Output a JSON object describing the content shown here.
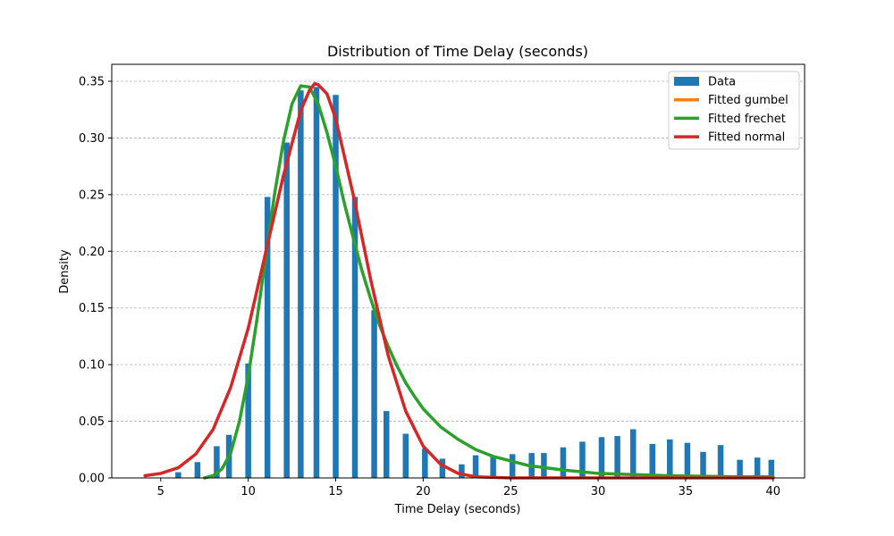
{
  "chart_data": {
    "type": "bar",
    "title": "Distribution of Time Delay (seconds)",
    "xlabel": "Time Delay (seconds)",
    "ylabel": "Density",
    "xlim": [
      2.2,
      41.8
    ],
    "ylim": [
      0,
      0.365
    ],
    "xticks": [
      5,
      10,
      15,
      20,
      25,
      30,
      35,
      40
    ],
    "yticks": [
      0.0,
      0.05,
      0.1,
      0.15,
      0.2,
      0.25,
      0.3,
      0.35
    ],
    "ytick_labels": [
      "0.00",
      "0.05",
      "0.10",
      "0.15",
      "0.20",
      "0.25",
      "0.30",
      "0.35"
    ],
    "grid": "y-dashed",
    "legend_position": "top-right",
    "histogram": {
      "name": "Data",
      "color": "#1f77b4",
      "bins": [
        {
          "x": 6.0,
          "density": 0.005
        },
        {
          "x": 7.1,
          "density": 0.014
        },
        {
          "x": 8.2,
          "density": 0.028
        },
        {
          "x": 8.9,
          "density": 0.038
        },
        {
          "x": 10.0,
          "density": 0.101
        },
        {
          "x": 11.1,
          "density": 0.248
        },
        {
          "x": 12.2,
          "density": 0.296
        },
        {
          "x": 13.0,
          "density": 0.342
        },
        {
          "x": 13.9,
          "density": 0.345
        },
        {
          "x": 15.0,
          "density": 0.338
        },
        {
          "x": 16.1,
          "density": 0.248
        },
        {
          "x": 17.2,
          "density": 0.148
        },
        {
          "x": 17.9,
          "density": 0.059
        },
        {
          "x": 19.0,
          "density": 0.039
        },
        {
          "x": 20.1,
          "density": 0.026
        },
        {
          "x": 21.1,
          "density": 0.017
        },
        {
          "x": 22.2,
          "density": 0.012
        },
        {
          "x": 23.0,
          "density": 0.02
        },
        {
          "x": 24.0,
          "density": 0.019
        },
        {
          "x": 25.1,
          "density": 0.021
        },
        {
          "x": 26.2,
          "density": 0.022
        },
        {
          "x": 26.9,
          "density": 0.022
        },
        {
          "x": 28.0,
          "density": 0.027
        },
        {
          "x": 29.1,
          "density": 0.032
        },
        {
          "x": 30.2,
          "density": 0.036
        },
        {
          "x": 31.1,
          "density": 0.037
        },
        {
          "x": 32.0,
          "density": 0.043
        },
        {
          "x": 33.1,
          "density": 0.03
        },
        {
          "x": 34.1,
          "density": 0.034
        },
        {
          "x": 35.1,
          "density": 0.031
        },
        {
          "x": 36.0,
          "density": 0.023
        },
        {
          "x": 37.0,
          "density": 0.029
        },
        {
          "x": 38.1,
          "density": 0.016
        },
        {
          "x": 39.1,
          "density": 0.018
        },
        {
          "x": 39.9,
          "density": 0.016
        }
      ]
    },
    "series": [
      {
        "name": "Fitted gumbel",
        "color": "#ff7f0e",
        "points": []
      },
      {
        "name": "Fitted frechet",
        "color": "#2ca02c",
        "points": [
          [
            7.5,
            0.0
          ],
          [
            8.0,
            0.002
          ],
          [
            8.5,
            0.008
          ],
          [
            9.0,
            0.022
          ],
          [
            9.5,
            0.05
          ],
          [
            10.0,
            0.09
          ],
          [
            10.5,
            0.14
          ],
          [
            11.0,
            0.195
          ],
          [
            11.5,
            0.25
          ],
          [
            12.0,
            0.296
          ],
          [
            12.5,
            0.33
          ],
          [
            13.0,
            0.346
          ],
          [
            13.5,
            0.345
          ],
          [
            14.0,
            0.33
          ],
          [
            14.5,
            0.305
          ],
          [
            15.0,
            0.275
          ],
          [
            15.5,
            0.242
          ],
          [
            16.0,
            0.212
          ],
          [
            16.5,
            0.183
          ],
          [
            17.0,
            0.158
          ],
          [
            17.5,
            0.135
          ],
          [
            18.0,
            0.116
          ],
          [
            18.5,
            0.099
          ],
          [
            19.0,
            0.084
          ],
          [
            19.5,
            0.072
          ],
          [
            20.0,
            0.061
          ],
          [
            21.0,
            0.045
          ],
          [
            22.0,
            0.034
          ],
          [
            23.0,
            0.025
          ],
          [
            24.0,
            0.019
          ],
          [
            25.0,
            0.015
          ],
          [
            26.0,
            0.011
          ],
          [
            27.0,
            0.009
          ],
          [
            28.0,
            0.007
          ],
          [
            30.0,
            0.004
          ],
          [
            32.0,
            0.003
          ],
          [
            34.0,
            0.002
          ],
          [
            36.0,
            0.0015
          ],
          [
            38.0,
            0.001
          ],
          [
            40.0,
            0.001
          ]
        ]
      },
      {
        "name": "Fitted normal",
        "color": "#d62728",
        "points": [
          [
            4.1,
            0.002
          ],
          [
            5.0,
            0.004
          ],
          [
            6.0,
            0.009
          ],
          [
            7.0,
            0.021
          ],
          [
            8.0,
            0.043
          ],
          [
            9.0,
            0.08
          ],
          [
            10.0,
            0.132
          ],
          [
            11.0,
            0.199
          ],
          [
            12.0,
            0.266
          ],
          [
            13.0,
            0.324
          ],
          [
            13.5,
            0.342
          ],
          [
            13.8,
            0.348
          ],
          [
            14.0,
            0.347
          ],
          [
            14.5,
            0.339
          ],
          [
            15.0,
            0.317
          ],
          [
            16.0,
            0.25
          ],
          [
            17.0,
            0.175
          ],
          [
            18.0,
            0.108
          ],
          [
            19.0,
            0.059
          ],
          [
            20.0,
            0.028
          ],
          [
            21.0,
            0.012
          ],
          [
            22.0,
            0.004
          ],
          [
            23.0,
            0.001
          ],
          [
            25.0,
            0.0
          ],
          [
            30.0,
            0.0
          ],
          [
            35.0,
            0.0
          ],
          [
            40.0,
            0.0
          ]
        ]
      }
    ]
  }
}
